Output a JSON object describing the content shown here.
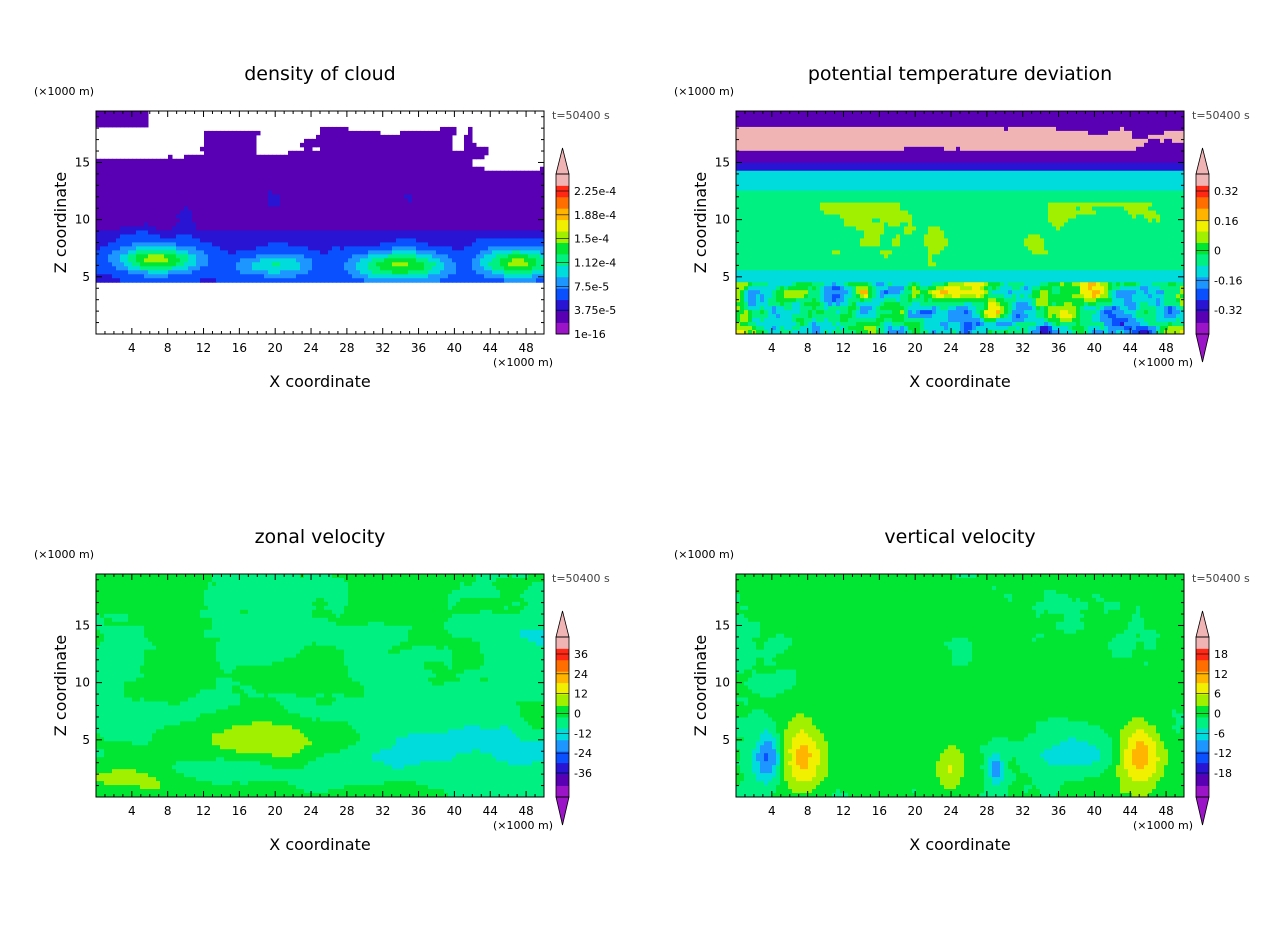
{
  "time_label": "t=50400 s",
  "unit_label": "(×1000 m)",
  "chart_data": [
    {
      "type": "heatmap",
      "title": "density of cloud",
      "xlabel": "X coordinate",
      "ylabel": "Z coordinate",
      "x_ticks": [
        4,
        8,
        12,
        16,
        20,
        24,
        28,
        32,
        36,
        40,
        44,
        48
      ],
      "y_ticks": [
        5,
        10,
        15
      ],
      "xlim": [
        0,
        50
      ],
      "ylim": [
        0,
        19.5
      ],
      "colorbar_labels": [
        "1e-16",
        "3.75e-5",
        "7.5e-5",
        "1.12e-4",
        "1.5e-4",
        "1.88e-4",
        "2.25e-4"
      ],
      "colorbar_extend": "max",
      "field": "cloud"
    },
    {
      "type": "heatmap",
      "title": "potential temperature deviation",
      "xlabel": "X coordinate",
      "ylabel": "Z coordinate",
      "x_ticks": [
        4,
        8,
        12,
        16,
        20,
        24,
        28,
        32,
        36,
        40,
        44,
        48
      ],
      "y_ticks": [
        5,
        10,
        15
      ],
      "xlim": [
        0,
        50
      ],
      "ylim": [
        0,
        19.5
      ],
      "colorbar_labels": [
        "-0.32",
        "-0.16",
        "0",
        "0.16",
        "0.32"
      ],
      "colorbar_extend": "both",
      "field": "theta"
    },
    {
      "type": "heatmap",
      "title": "zonal velocity",
      "xlabel": "X coordinate",
      "ylabel": "Z coordinate",
      "x_ticks": [
        4,
        8,
        12,
        16,
        20,
        24,
        28,
        32,
        36,
        40,
        44,
        48
      ],
      "y_ticks": [
        5,
        10,
        15
      ],
      "xlim": [
        0,
        50
      ],
      "ylim": [
        0,
        19.5
      ],
      "colorbar_labels": [
        "-36",
        "-24",
        "-12",
        "0",
        "12",
        "24",
        "36"
      ],
      "colorbar_extend": "both",
      "field": "u"
    },
    {
      "type": "heatmap",
      "title": "vertical velocity",
      "xlabel": "X coordinate",
      "ylabel": "Z coordinate",
      "x_ticks": [
        4,
        8,
        12,
        16,
        20,
        24,
        28,
        32,
        36,
        40,
        44,
        48
      ],
      "y_ticks": [
        5,
        10,
        15
      ],
      "xlim": [
        0,
        50
      ],
      "ylim": [
        0,
        19.5
      ],
      "colorbar_labels": [
        "-18",
        "-12",
        "-6",
        "0",
        "6",
        "12",
        "18"
      ],
      "colorbar_extend": "both",
      "field": "w"
    }
  ],
  "colormap": [
    "#9c14c8",
    "#5a00b4",
    "#2814d2",
    "#0a50ff",
    "#1e96ff",
    "#00dcdc",
    "#00f082",
    "#00e632",
    "#a0f000",
    "#f0f000",
    "#ffb400",
    "#ff6e00",
    "#ff2814",
    "#f0b4b4"
  ]
}
